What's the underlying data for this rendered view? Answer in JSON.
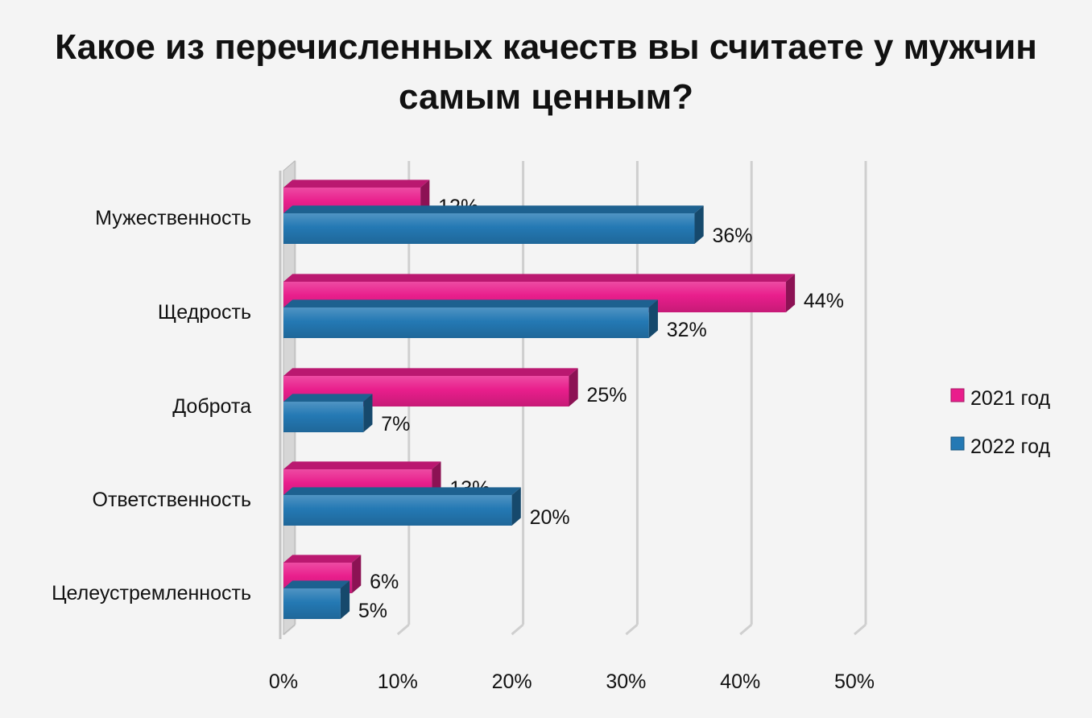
{
  "chart_data": {
    "type": "bar",
    "orientation": "horizontal",
    "style": "3d",
    "title": "Какое из перечисленных качеств вы считаете у мужчин самым ценным?",
    "categories": [
      "Мужественность",
      "Щедрость",
      "Доброта",
      "Ответственность",
      "Целеустремленность"
    ],
    "series": [
      {
        "name": "2021 год",
        "values": [
          12,
          44,
          25,
          13,
          6
        ],
        "labels": [
          "12%",
          "44%",
          "25%",
          "13%",
          "6%"
        ],
        "color": "#e91e8c"
      },
      {
        "name": "2022 год",
        "values": [
          36,
          32,
          7,
          20,
          5
        ],
        "labels": [
          "36%",
          "32%",
          "7%",
          "20%",
          "5%"
        ],
        "color": "#2479b4"
      }
    ],
    "xlim": [
      0,
      50
    ],
    "x_ticks": [
      "0%",
      "10%",
      "20%",
      "30%",
      "40%",
      "50%"
    ],
    "grid": true,
    "legend_position": "right"
  }
}
